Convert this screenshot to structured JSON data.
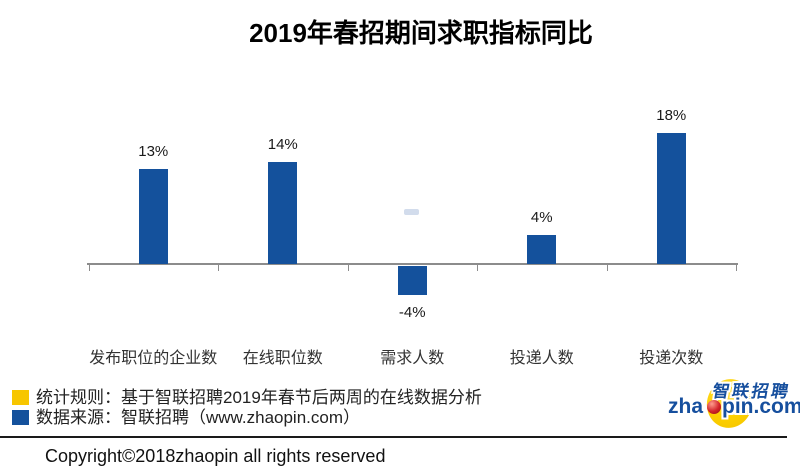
{
  "title": "2019年春招期间求职指标同比",
  "chart_data": {
    "type": "bar",
    "title": "2019年春招期间求职指标同比",
    "categories": [
      "发布职位的企业数",
      "在线职位数",
      "需求人数",
      "投递人数",
      "投递次数"
    ],
    "values": [
      13,
      14,
      -4,
      4,
      18
    ],
    "value_labels": [
      "13%",
      "14%",
      "-4%",
      "4%",
      "18%"
    ],
    "xlabel": "",
    "ylabel": "",
    "ylim": [
      -6,
      20
    ],
    "unit": "%",
    "bar_color": "#14519C",
    "axis_color": "#8C8C8C",
    "grid": false,
    "legend": false
  },
  "footnotes": {
    "rule": {
      "marker_color": "#F7C600",
      "text": "统计规则：基于智联招聘2019年春节后两周的在线数据分析"
    },
    "source": {
      "marker_color": "#14519C",
      "text": "数据来源：智联招聘（www.zhaopin.com）"
    }
  },
  "logo": {
    "brand_zh": "智联招聘",
    "brand_en_pre": "zha",
    "brand_en_post": "pin.com",
    "egg_color": "#FDD000",
    "text_color": "#164F9E",
    "dot_color": "#D2232A"
  },
  "copyright": "Copyright©2018zhaopin all rights reserved"
}
